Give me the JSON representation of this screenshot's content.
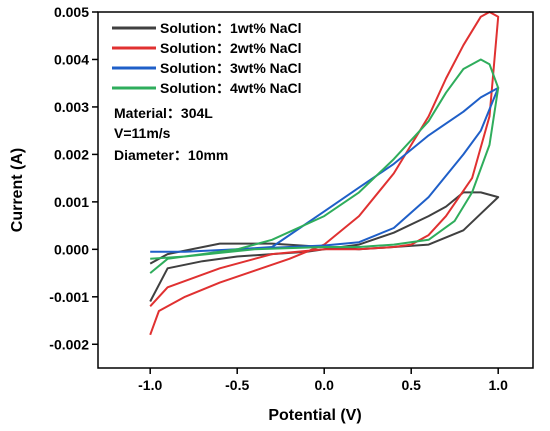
{
  "chart_data": {
    "type": "line",
    "xlabel": "Potential (V)",
    "ylabel": "Current (A)",
    "xlim": [
      -1.3,
      1.2
    ],
    "ylim": [
      -0.0025,
      0.005
    ],
    "xticks": [
      "-1.0",
      "-0.5",
      "0.0",
      "0.5",
      "1.0"
    ],
    "xtick_values": [
      -1.0,
      -0.5,
      0.0,
      0.5,
      1.0
    ],
    "yticks": [
      "-0.002",
      "-0.001",
      "0.000",
      "0.001",
      "0.002",
      "0.003",
      "0.004",
      "0.005"
    ],
    "ytick_values": [
      -0.002,
      -0.001,
      0.0,
      0.001,
      0.002,
      0.003,
      0.004,
      0.005
    ],
    "grid": false,
    "legend_position": "top-left",
    "annotations": [
      "Material：304L",
      "V=11m/s",
      "Diameter：10mm"
    ],
    "series": [
      {
        "name": "Solution：1wt% NaCl",
        "color": "#404040",
        "x": [
          -1.0,
          -0.9,
          -0.7,
          -0.5,
          -0.3,
          -0.1,
          0.0,
          0.2,
          0.4,
          0.6,
          0.7,
          0.8,
          0.9,
          1.0,
          0.9,
          0.8,
          0.6,
          0.4,
          0.2,
          0.0,
          -0.3,
          -0.6,
          -0.9,
          -1.0
        ],
        "y": [
          -0.0011,
          -0.0004,
          -0.00025,
          -0.00015,
          -0.0001,
          -5e-05,
          0.0,
          0.0001,
          0.00035,
          0.0007,
          0.0009,
          0.0012,
          0.0012,
          0.0011,
          0.00075,
          0.0004,
          0.0001,
          5e-05,
          0.0,
          5e-05,
          0.00012,
          0.00012,
          -0.0001,
          -0.0003
        ]
      },
      {
        "name": "Solution：2wt% NaCl",
        "color": "#e03131",
        "x": [
          -1.0,
          -0.95,
          -0.8,
          -0.6,
          -0.4,
          -0.2,
          0.0,
          0.2,
          0.4,
          0.5,
          0.6,
          0.7,
          0.8,
          0.9,
          0.95,
          1.0,
          0.95,
          0.85,
          0.7,
          0.6,
          0.5,
          0.4,
          0.2,
          0.0,
          -0.3,
          -0.6,
          -0.9,
          -1.0
        ],
        "y": [
          -0.0018,
          -0.0013,
          -0.001,
          -0.0007,
          -0.00045,
          -0.0002,
          0.0001,
          0.0007,
          0.0016,
          0.0022,
          0.0028,
          0.0036,
          0.0043,
          0.0049,
          0.005,
          0.0049,
          0.0028,
          0.0015,
          0.0007,
          0.0003,
          0.0001,
          5e-05,
          0.0,
          0.0,
          -0.0001,
          -0.0004,
          -0.0008,
          -0.0012
        ]
      },
      {
        "name": "Solution：3wt% NaCl",
        "color": "#1f5fc8",
        "x": [
          -1.0,
          -0.8,
          -0.5,
          -0.3,
          0.0,
          0.2,
          0.4,
          0.6,
          0.8,
          0.9,
          1.0,
          0.9,
          0.8,
          0.6,
          0.4,
          0.2,
          0.0,
          -0.2,
          -0.5,
          -0.8,
          -1.0
        ],
        "y": [
          -5e-05,
          -5e-05,
          0.0,
          5e-05,
          0.0008,
          0.0013,
          0.0018,
          0.0024,
          0.0029,
          0.0032,
          0.0034,
          0.0025,
          0.002,
          0.0011,
          0.00045,
          0.00015,
          8e-05,
          5e-05,
          0.0,
          -5e-05,
          -5e-05
        ]
      },
      {
        "name": "Solution：4wt% NaCl",
        "color": "#2fad5c",
        "x": [
          -1.0,
          -0.9,
          -0.7,
          -0.5,
          -0.3,
          0.0,
          0.2,
          0.4,
          0.6,
          0.7,
          0.8,
          0.9,
          0.95,
          1.0,
          0.95,
          0.85,
          0.75,
          0.6,
          0.4,
          0.2,
          0.0,
          -0.4,
          -0.8,
          -1.0
        ],
        "y": [
          -0.0005,
          -0.0002,
          -0.0001,
          0.0,
          0.0002,
          0.0007,
          0.0012,
          0.0019,
          0.0027,
          0.0033,
          0.0038,
          0.004,
          0.0039,
          0.0034,
          0.0022,
          0.0012,
          0.0006,
          0.0002,
          0.0001,
          5e-05,
          5e-05,
          0.0,
          -0.00015,
          -0.0002
        ]
      }
    ]
  }
}
